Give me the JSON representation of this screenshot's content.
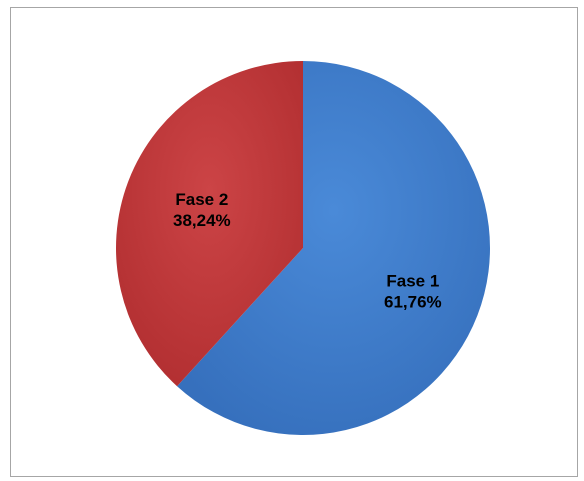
{
  "chart_data": {
    "type": "pie",
    "title": "",
    "categories": [
      "Fase 1",
      "Fase 2"
    ],
    "values": [
      61.76,
      38.24
    ],
    "value_labels": [
      "61,76%",
      "38,24%"
    ],
    "colors": [
      "#3e7ccc",
      "#c0393b"
    ],
    "legend": "none"
  }
}
